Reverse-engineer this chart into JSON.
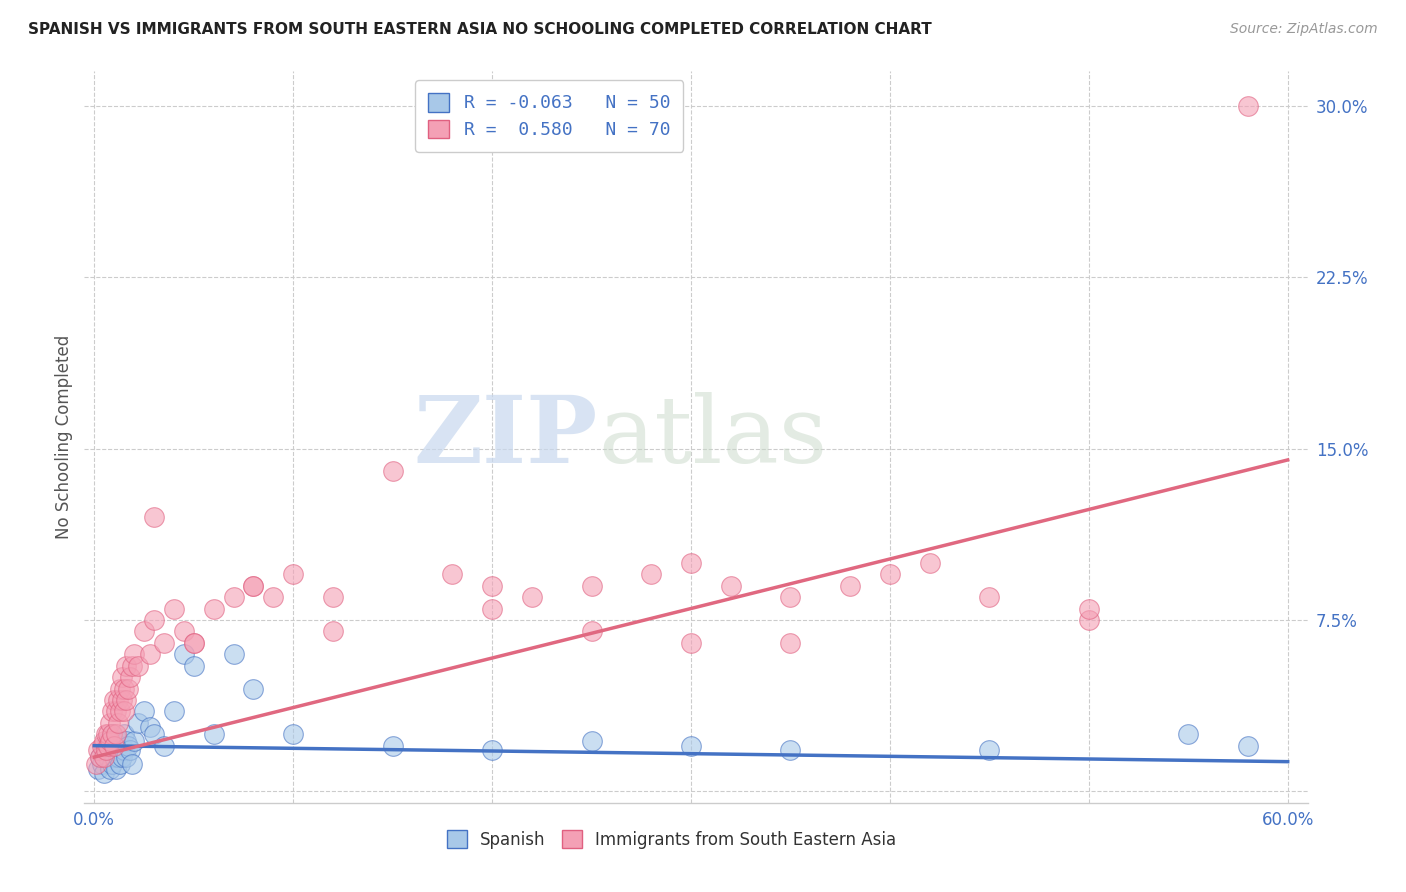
{
  "title": "SPANISH VS IMMIGRANTS FROM SOUTH EASTERN ASIA NO SCHOOLING COMPLETED CORRELATION CHART",
  "source": "Source: ZipAtlas.com",
  "ylabel": "No Schooling Completed",
  "xlabel_ticks": [
    "0.0%",
    "",
    "",
    "",
    "",
    "",
    "60.0%"
  ],
  "xlabel_vals": [
    0.0,
    0.1,
    0.2,
    0.3,
    0.4,
    0.5,
    0.6
  ],
  "ytick_labels": [
    "",
    "7.5%",
    "15.0%",
    "22.5%",
    "30.0%"
  ],
  "ytick_vals": [
    0.0,
    0.075,
    0.15,
    0.225,
    0.3
  ],
  "xlim": [
    -0.005,
    0.61
  ],
  "ylim": [
    -0.005,
    0.315
  ],
  "legend_r1": "R = -0.063",
  "legend_n1": "N = 50",
  "legend_r2": "R =  0.580",
  "legend_n2": "N = 70",
  "color_spanish": "#a8c8e8",
  "color_immigrants": "#f4a0b5",
  "color_spanish_dark": "#4472c4",
  "color_immigrants_dark": "#e06080",
  "color_spanish_line": "#4472c4",
  "color_immigrants_line": "#e06880",
  "color_axis": "#4472c4",
  "watermark_zip": "ZIP",
  "watermark_atlas": "atlas",
  "background_color": "#ffffff",
  "spanish_scatter_x": [
    0.002,
    0.003,
    0.004,
    0.005,
    0.005,
    0.006,
    0.007,
    0.007,
    0.008,
    0.008,
    0.009,
    0.009,
    0.01,
    0.01,
    0.011,
    0.011,
    0.012,
    0.012,
    0.013,
    0.013,
    0.014,
    0.014,
    0.015,
    0.015,
    0.016,
    0.016,
    0.017,
    0.018,
    0.019,
    0.02,
    0.022,
    0.025,
    0.028,
    0.03,
    0.035,
    0.04,
    0.045,
    0.05,
    0.06,
    0.07,
    0.08,
    0.1,
    0.15,
    0.2,
    0.25,
    0.3,
    0.35,
    0.45,
    0.55,
    0.58
  ],
  "spanish_scatter_y": [
    0.01,
    0.015,
    0.012,
    0.018,
    0.008,
    0.02,
    0.015,
    0.022,
    0.01,
    0.018,
    0.012,
    0.025,
    0.015,
    0.02,
    0.01,
    0.018,
    0.022,
    0.015,
    0.018,
    0.012,
    0.02,
    0.015,
    0.025,
    0.018,
    0.022,
    0.015,
    0.02,
    0.018,
    0.012,
    0.022,
    0.03,
    0.035,
    0.028,
    0.025,
    0.02,
    0.035,
    0.06,
    0.055,
    0.025,
    0.06,
    0.045,
    0.025,
    0.02,
    0.018,
    0.022,
    0.02,
    0.018,
    0.018,
    0.025,
    0.02
  ],
  "immigrants_scatter_x": [
    0.001,
    0.002,
    0.003,
    0.004,
    0.005,
    0.005,
    0.006,
    0.006,
    0.007,
    0.007,
    0.008,
    0.008,
    0.009,
    0.009,
    0.01,
    0.01,
    0.011,
    0.011,
    0.012,
    0.012,
    0.013,
    0.013,
    0.014,
    0.014,
    0.015,
    0.015,
    0.016,
    0.016,
    0.017,
    0.018,
    0.019,
    0.02,
    0.022,
    0.025,
    0.028,
    0.03,
    0.035,
    0.04,
    0.045,
    0.05,
    0.06,
    0.07,
    0.08,
    0.09,
    0.1,
    0.12,
    0.15,
    0.18,
    0.2,
    0.22,
    0.25,
    0.28,
    0.3,
    0.32,
    0.35,
    0.38,
    0.4,
    0.42,
    0.45,
    0.5,
    0.03,
    0.05,
    0.08,
    0.12,
    0.2,
    0.25,
    0.3,
    0.35,
    0.5,
    0.58
  ],
  "immigrants_scatter_y": [
    0.012,
    0.018,
    0.015,
    0.02,
    0.015,
    0.022,
    0.018,
    0.025,
    0.02,
    0.025,
    0.03,
    0.022,
    0.035,
    0.025,
    0.04,
    0.02,
    0.035,
    0.025,
    0.03,
    0.04,
    0.035,
    0.045,
    0.04,
    0.05,
    0.045,
    0.035,
    0.055,
    0.04,
    0.045,
    0.05,
    0.055,
    0.06,
    0.055,
    0.07,
    0.06,
    0.075,
    0.065,
    0.08,
    0.07,
    0.065,
    0.08,
    0.085,
    0.09,
    0.085,
    0.095,
    0.085,
    0.14,
    0.095,
    0.09,
    0.085,
    0.09,
    0.095,
    0.1,
    0.09,
    0.085,
    0.09,
    0.095,
    0.1,
    0.085,
    0.075,
    0.12,
    0.065,
    0.09,
    0.07,
    0.08,
    0.07,
    0.065,
    0.065,
    0.08,
    0.3
  ],
  "spanish_line_x": [
    0.0,
    0.6
  ],
  "spanish_line_y": [
    0.02,
    0.013
  ],
  "immigrants_line_x": [
    0.0,
    0.6
  ],
  "immigrants_line_y": [
    0.015,
    0.145
  ]
}
